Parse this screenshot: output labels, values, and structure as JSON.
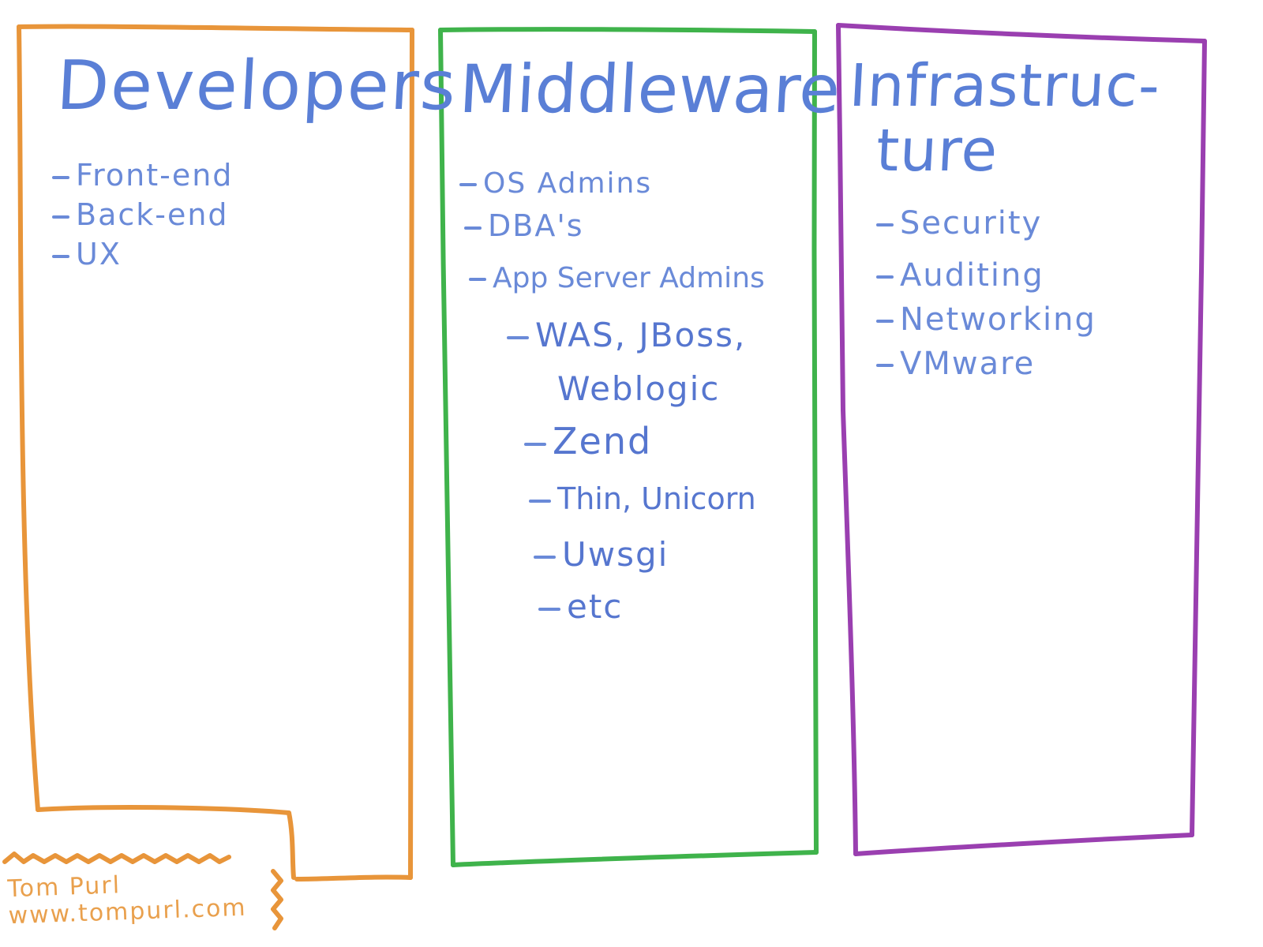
{
  "columns": [
    {
      "title": "Developers",
      "color": "#e8953a",
      "items": [
        "Front-end",
        "Back-end",
        "UX"
      ]
    },
    {
      "title": "Middleware",
      "color": "#3fb34b",
      "items": [
        "OS Admins",
        "DBA's",
        "App Server Admins"
      ],
      "sub_items": [
        "WAS, JBoss,",
        "Weblogic",
        "Zend",
        "Thin, Unicorn",
        "Uwsgi",
        "etc"
      ]
    },
    {
      "title_line1": "Infrastruc-",
      "title_line2": "ture",
      "color": "#9a3fb0",
      "items": [
        "Security",
        "Auditing",
        "Networking",
        "VMware"
      ]
    }
  ],
  "signature": {
    "name": "Tom Purl",
    "website": "www.tompurl.com"
  }
}
